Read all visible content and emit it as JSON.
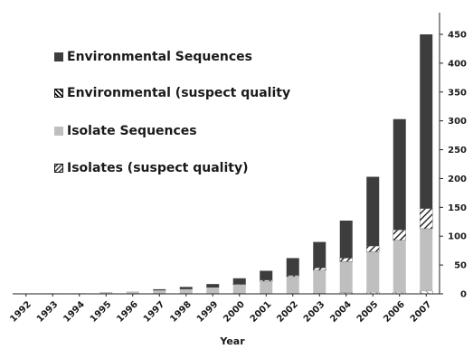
{
  "chart_data": {
    "type": "bar",
    "stacked": true,
    "title": "",
    "xlabel": "Year",
    "ylabel": "",
    "ylim": [
      0,
      450
    ],
    "yticks": [
      0,
      50,
      100,
      150,
      200,
      250,
      300,
      350,
      400,
      450
    ],
    "y_axis_side": "right",
    "legend_position": "top-left",
    "grid": false,
    "categories": [
      "1992",
      "1993",
      "1994",
      "1995",
      "1996",
      "1997",
      "1998",
      "1999",
      "2000",
      "2001",
      "2002",
      "2003",
      "2004",
      "2005",
      "2006",
      "2007"
    ],
    "series": [
      {
        "name": "Isolates (suspect quality)",
        "pattern": "diagonal-hatch-gray",
        "values": [
          0,
          0,
          0,
          0,
          0,
          0,
          0,
          0,
          0,
          0,
          0,
          1,
          2,
          3,
          3,
          5
        ]
      },
      {
        "name": "Isolate Sequences",
        "color": "#bfbfbf",
        "values": [
          0,
          1,
          1,
          3,
          4,
          6,
          8,
          11,
          16,
          22,
          30,
          40,
          54,
          70,
          90,
          108
        ]
      },
      {
        "name": "Environmental (suspect quality",
        "pattern": "diagonal-hatch-black",
        "values": [
          0,
          0,
          0,
          0,
          0,
          0,
          0,
          0,
          1,
          2,
          2,
          4,
          6,
          10,
          18,
          35
        ]
      },
      {
        "name": "Environmental  Sequences",
        "color": "#3d3d3d",
        "values": [
          0,
          0,
          0,
          0,
          0,
          2,
          4,
          6,
          10,
          16,
          30,
          45,
          65,
          120,
          192,
          302
        ]
      }
    ]
  }
}
